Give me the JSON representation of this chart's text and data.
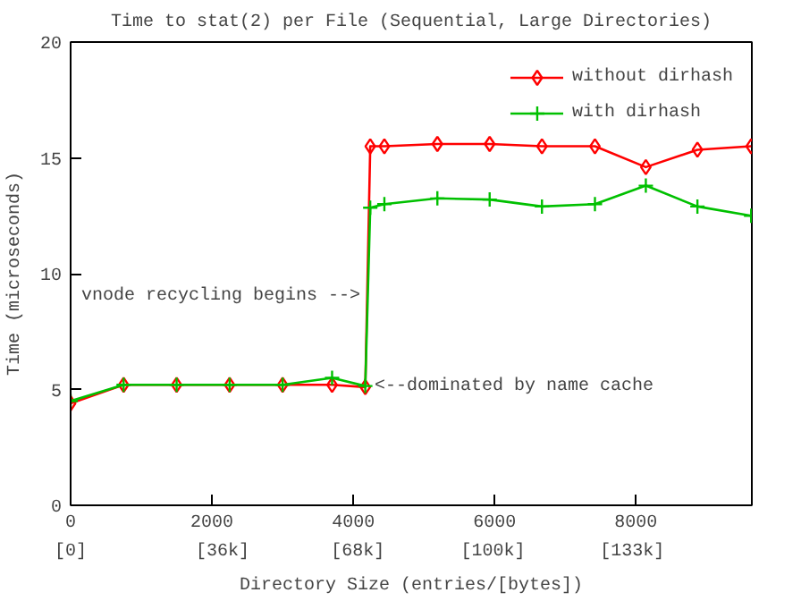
{
  "chart_data": {
    "type": "line",
    "title": "Time to stat(2) per File (Sequential, Large Directories)",
    "xlabel": "Directory Size (entries/[bytes])",
    "ylabel": "Time (microseconds)",
    "x": [
      0,
      750,
      1500,
      2250,
      3000,
      3700,
      4170,
      4240,
      4440,
      5190,
      5930,
      6670,
      7420,
      8140,
      8870,
      9630
    ],
    "series": [
      {
        "name": "without dirhash",
        "color": "#ff0000",
        "marker": "diamond",
        "values": [
          4.4,
          5.2,
          5.2,
          5.2,
          5.2,
          5.2,
          5.1,
          15.5,
          15.5,
          15.6,
          15.6,
          15.5,
          15.5,
          14.6,
          15.35,
          15.5
        ]
      },
      {
        "name": "with dirhash",
        "color": "#00c000",
        "marker": "cross",
        "values": [
          4.5,
          5.2,
          5.2,
          5.2,
          5.2,
          5.5,
          5.15,
          12.85,
          13.0,
          13.25,
          13.2,
          12.9,
          13.0,
          13.8,
          12.9,
          12.5
        ]
      }
    ],
    "xlim": [
      0,
      9640
    ],
    "ylim": [
      0,
      20
    ],
    "xticks": [
      0,
      2000,
      4000,
      6000,
      8000
    ],
    "x2lim": [
      0,
      161300
    ],
    "x2ticks": [
      {
        "value": 0,
        "label": "[0]"
      },
      {
        "value": 36000,
        "label": "[36k]"
      },
      {
        "value": 68000,
        "label": "[68k]"
      },
      {
        "value": 100000,
        "label": "[100k]"
      },
      {
        "value": 133000,
        "label": "[133k]"
      }
    ],
    "yticks": [
      0,
      5,
      10,
      15,
      20
    ],
    "annotations": [
      {
        "text": "vnode recycling begins -->",
        "x": 4100,
        "y": 9
      },
      {
        "text": "<--dominated by name cache",
        "x": 4300,
        "y": 5.1
      }
    ],
    "legend": "top right",
    "grid": false,
    "line_style": "solid"
  }
}
